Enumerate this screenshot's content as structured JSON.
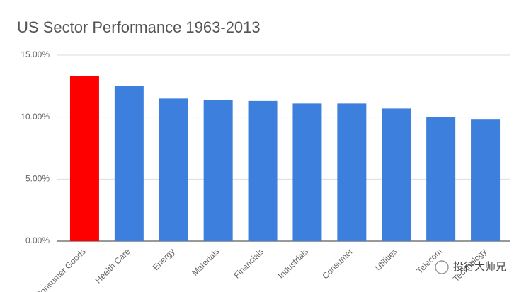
{
  "chart_data": {
    "type": "bar",
    "title": "US Sector Performance 1963-2013",
    "categories": [
      "Consumer Goods",
      "Health Care",
      "Energy",
      "Materials",
      "Financials",
      "Industrials",
      "Consumer",
      "Utilities",
      "Telecom",
      "Technology"
    ],
    "values": [
      13.3,
      12.5,
      11.5,
      11.4,
      11.3,
      11.1,
      11.1,
      10.7,
      10.0,
      9.8
    ],
    "colors": [
      "#ff0000",
      "#3d7fdc",
      "#3d7fdc",
      "#3d7fdc",
      "#3d7fdc",
      "#3d7fdc",
      "#3d7fdc",
      "#3d7fdc",
      "#3d7fdc",
      "#3d7fdc"
    ],
    "ylim": [
      0,
      15
    ],
    "yticks": [
      {
        "value": 0,
        "label": "0.00%"
      },
      {
        "value": 5,
        "label": "5.00%"
      },
      {
        "value": 10,
        "label": "10.00%"
      },
      {
        "value": 15,
        "label": "15.00%"
      }
    ],
    "grid": true
  },
  "watermark": "投行大师兄"
}
